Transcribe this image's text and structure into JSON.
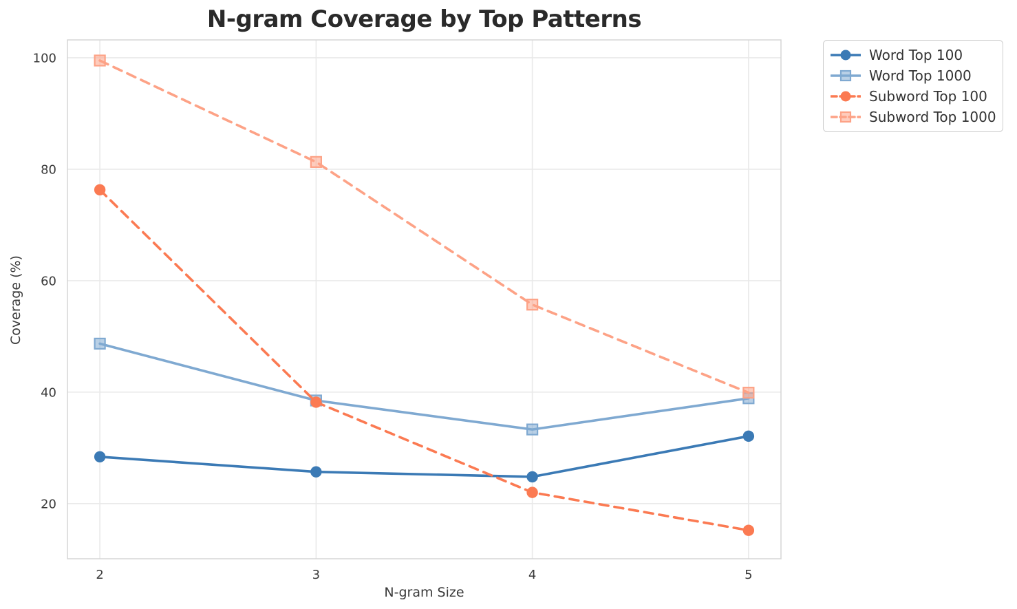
{
  "chart_data": {
    "type": "line",
    "title": "N-gram Coverage by Top Patterns",
    "xlabel": "N-gram Size",
    "ylabel": "Coverage (%)",
    "x": [
      2,
      3,
      4,
      5
    ],
    "x_tick_labels": [
      "2",
      "3",
      "4",
      "5"
    ],
    "y_ticks": [
      20,
      40,
      60,
      80,
      100
    ],
    "xlim": [
      1.85,
      5.15
    ],
    "ylim": [
      10.1,
      103.2
    ],
    "grid": true,
    "legend_position": "upper right, outside plot",
    "series": [
      {
        "name": "Word Top 100",
        "values": [
          28.4,
          25.7,
          24.8,
          32.1
        ],
        "color": "#3b7ab5",
        "line_style": "solid",
        "marker": "circle"
      },
      {
        "name": "Word Top 1000",
        "values": [
          48.7,
          38.5,
          33.3,
          38.9
        ],
        "color": "#7fa9d1",
        "line_style": "solid",
        "marker": "square"
      },
      {
        "name": "Subword Top 100",
        "values": [
          76.3,
          38.2,
          22.0,
          15.2
        ],
        "color": "#fb7a52",
        "line_style": "dashed",
        "marker": "circle"
      },
      {
        "name": "Subword Top 1000",
        "values": [
          99.5,
          81.3,
          55.7,
          39.9
        ],
        "color": "#fda286",
        "line_style": "dashed",
        "marker": "square"
      }
    ],
    "colors": {
      "background": "#ffffff",
      "grid": "#e9e9e9",
      "frame": "#d3d3d3",
      "title_text": "#2a2a2a",
      "tick_text": "#3a3a3a",
      "legend_border": "#cdcdcd"
    }
  }
}
